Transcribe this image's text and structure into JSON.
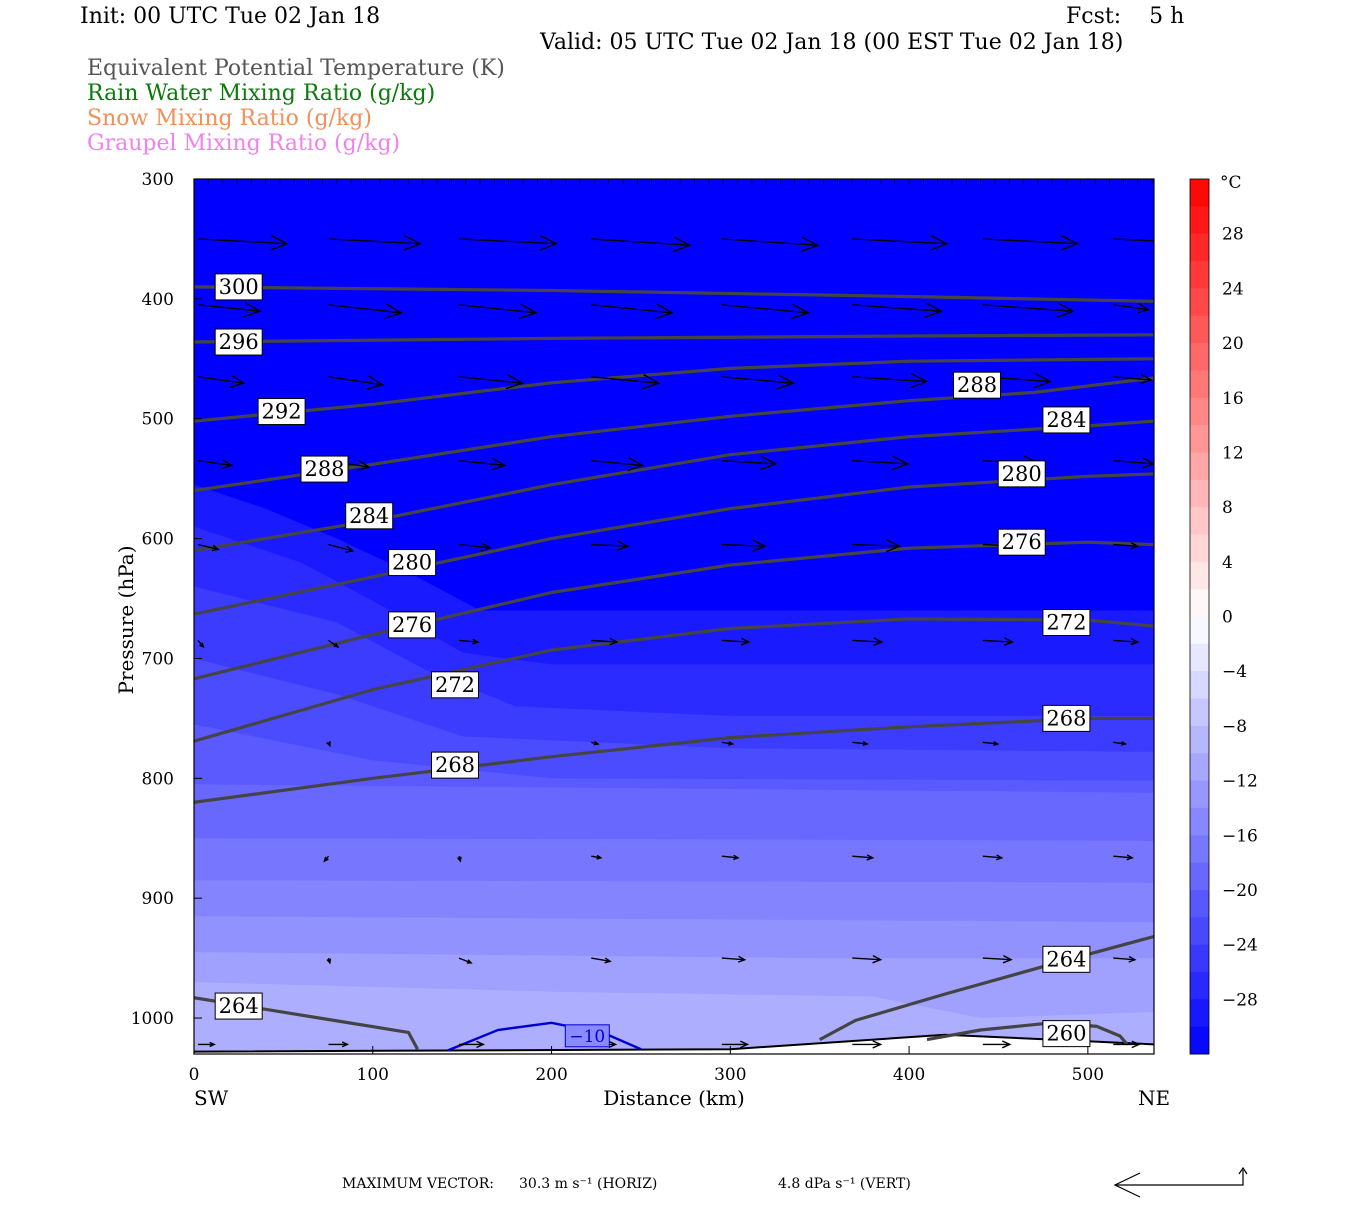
{
  "header": {
    "init": "Init: 00 UTC Tue 02 Jan 18",
    "fcst": "Fcst:    5 h",
    "valid": "Valid: 05 UTC Tue 02 Jan 18 (00 EST Tue 02 Jan 18)",
    "legend": [
      {
        "text": "Equivalent Potential Temperature (K)",
        "color": "#555555"
      },
      {
        "text": "Rain Water Mixing Ratio (g/kg)",
        "color": "#0a7a0a"
      },
      {
        "text": "Snow Mixing Ratio (g/kg)",
        "color": "#f0905a"
      },
      {
        "text": "Graupel Mixing Ratio (g/kg)",
        "color": "#ee82ee"
      }
    ]
  },
  "footer": {
    "max_vector_label": "MAXIMUM VECTOR:",
    "horiz": "30.3 m s⁻¹ (HORIZ)",
    "vert": "4.8 dPa s⁻¹ (VERT)"
  },
  "chart_data": {
    "type": "contour",
    "xlabel": "Distance (km)",
    "ylabel": "Pressure (hPa)",
    "x_ticks": [
      0,
      100,
      200,
      300,
      400,
      500
    ],
    "xlim": [
      0,
      537
    ],
    "y_ticks": [
      300,
      400,
      500,
      600,
      700,
      800,
      900,
      1000
    ],
    "ylim": [
      300,
      1030
    ],
    "x_end_labels": {
      "left": "SW",
      "right": "NE"
    },
    "colorbar": {
      "unit": "°C",
      "tick_labels": [
        "28",
        "24",
        "20",
        "16",
        "12",
        "8",
        "4",
        "0",
        "−4",
        "−8",
        "−12",
        "−16",
        "−20",
        "−24",
        "−28"
      ],
      "tick_values": [
        28,
        24,
        20,
        16,
        12,
        8,
        4,
        0,
        -4,
        -8,
        -12,
        -16,
        -20,
        -24,
        -28
      ],
      "range": [
        -32,
        32
      ],
      "step": 2
    },
    "theta_e_contours": [
      {
        "label": "300",
        "points": [
          [
            0,
            390
          ],
          [
            200,
            393
          ],
          [
            400,
            398
          ],
          [
            537,
            402
          ]
        ],
        "labels": [
          [
            25,
            390
          ]
        ]
      },
      {
        "label": "296",
        "points": [
          [
            0,
            436
          ],
          [
            200,
            433
          ],
          [
            400,
            431
          ],
          [
            537,
            430
          ]
        ],
        "labels": [
          [
            25,
            436
          ]
        ]
      },
      {
        "label": "292",
        "points": [
          [
            0,
            502
          ],
          [
            100,
            488
          ],
          [
            200,
            470
          ],
          [
            300,
            458
          ],
          [
            400,
            452
          ],
          [
            537,
            450
          ]
        ],
        "labels": [
          [
            49,
            494
          ]
        ]
      },
      {
        "label": "288",
        "points": [
          [
            0,
            560
          ],
          [
            100,
            538
          ],
          [
            200,
            515
          ],
          [
            300,
            498
          ],
          [
            400,
            485
          ],
          [
            470,
            478
          ],
          [
            537,
            466
          ]
        ],
        "labels": [
          [
            73,
            542
          ],
          [
            438,
            472
          ]
        ]
      },
      {
        "label": "284",
        "points": [
          [
            0,
            610
          ],
          [
            100,
            585
          ],
          [
            200,
            555
          ],
          [
            300,
            530
          ],
          [
            400,
            515
          ],
          [
            500,
            506
          ],
          [
            537,
            502
          ]
        ],
        "labels": [
          [
            98,
            581
          ],
          [
            488,
            501
          ]
        ]
      },
      {
        "label": "280",
        "points": [
          [
            0,
            663
          ],
          [
            100,
            632
          ],
          [
            200,
            600
          ],
          [
            300,
            575
          ],
          [
            400,
            557
          ],
          [
            500,
            548
          ],
          [
            537,
            546
          ]
        ],
        "labels": [
          [
            122,
            620
          ],
          [
            463,
            546
          ]
        ]
      },
      {
        "label": "276",
        "points": [
          [
            0,
            717
          ],
          [
            100,
            680
          ],
          [
            200,
            645
          ],
          [
            300,
            622
          ],
          [
            400,
            608
          ],
          [
            500,
            603
          ],
          [
            537,
            605
          ]
        ],
        "labels": [
          [
            122,
            672
          ],
          [
            463,
            603
          ]
        ]
      },
      {
        "label": "272",
        "points": [
          [
            0,
            769
          ],
          [
            100,
            726
          ],
          [
            200,
            693
          ],
          [
            300,
            675
          ],
          [
            400,
            667
          ],
          [
            500,
            668
          ],
          [
            537,
            673
          ]
        ],
        "labels": [
          [
            146,
            722
          ],
          [
            488,
            670
          ]
        ]
      },
      {
        "label": "268",
        "points": [
          [
            0,
            820
          ],
          [
            100,
            800
          ],
          [
            200,
            782
          ],
          [
            300,
            766
          ],
          [
            400,
            757
          ],
          [
            500,
            750
          ],
          [
            537,
            750
          ]
        ],
        "labels": [
          [
            146,
            789
          ],
          [
            488,
            750
          ]
        ]
      },
      {
        "label": "264",
        "points": [
          [
            0,
            983
          ],
          [
            70,
            1000
          ],
          [
            120,
            1012
          ],
          [
            125,
            1026
          ]
        ],
        "labels": [
          [
            25,
            990
          ]
        ]
      },
      {
        "label": "264",
        "points": [
          [
            350,
            1018
          ],
          [
            370,
            1002
          ],
          [
            420,
            980
          ],
          [
            480,
            955
          ],
          [
            537,
            932
          ]
        ],
        "labels": [
          [
            488,
            951
          ]
        ]
      },
      {
        "label": "260",
        "points": [
          [
            410,
            1018
          ],
          [
            440,
            1010
          ],
          [
            480,
            1004
          ],
          [
            505,
            1007
          ],
          [
            518,
            1015
          ],
          [
            522,
            1022
          ]
        ],
        "labels": [
          [
            488,
            1013
          ]
        ]
      }
    ],
    "temperature_contour": {
      "label": "−10",
      "points": [
        [
          142,
          1027
        ],
        [
          170,
          1010
        ],
        [
          200,
          1004
        ],
        [
          230,
          1013
        ],
        [
          250,
          1026
        ]
      ],
      "labels": [
        [
          220,
          1014
        ]
      ]
    },
    "wind_vectors": [
      {
        "p": 355,
        "x": [
          0,
          73,
          146,
          220,
          293,
          366,
          439,
          512
        ],
        "u": [
          66,
          68,
          72,
          73,
          71,
          70,
          70,
          72
        ],
        "v": [
          -3,
          -3,
          -3,
          -4,
          -4,
          -3,
          -3,
          -3
        ]
      },
      {
        "p": 410,
        "x": [
          0,
          73,
          146,
          220,
          293,
          366,
          439,
          512
        ],
        "u": [
          46,
          54,
          57,
          60,
          64,
          66,
          67,
          26
        ],
        "v": [
          -4,
          -5,
          -5,
          -5,
          -5,
          -4,
          -4,
          -3
        ]
      },
      {
        "p": 470,
        "x": [
          0,
          73,
          146,
          220,
          293,
          366,
          439,
          512
        ],
        "u": [
          34,
          40,
          47,
          50,
          53,
          55,
          50,
          28
        ],
        "v": [
          -4,
          -5,
          -4,
          -4,
          -4,
          -3,
          -3,
          -2
        ]
      },
      {
        "p": 540,
        "x": [
          0,
          73,
          146,
          220,
          293,
          366,
          439,
          512
        ],
        "u": [
          25,
          30,
          34,
          38,
          40,
          41,
          42,
          30
        ],
        "v": [
          -3,
          -4,
          -3,
          -3,
          -2,
          -2,
          -2,
          -2
        ]
      },
      {
        "p": 610,
        "x": [
          0,
          73,
          146,
          220,
          293,
          366,
          439,
          512
        ],
        "u": [
          15,
          18,
          23,
          27,
          32,
          35,
          32,
          18
        ],
        "v": [
          -3,
          -4,
          -2,
          -1,
          -1,
          -1,
          -1,
          -1
        ]
      },
      {
        "p": 690,
        "x": [
          0,
          73,
          146,
          220,
          293,
          366,
          439,
          512
        ],
        "u": [
          4,
          7,
          14,
          19,
          20,
          22,
          22,
          18
        ],
        "v": [
          -4,
          -4,
          -1,
          -1,
          -1,
          -1,
          -1,
          -1
        ]
      },
      {
        "p": 775,
        "x": [
          73,
          220,
          293,
          366,
          439,
          512
        ],
        "u": [
          1,
          5,
          8,
          11,
          11,
          9
        ],
        "v": [
          -2,
          -1,
          -1,
          -1,
          -1,
          -1
        ]
      },
      {
        "p": 870,
        "x": [
          73,
          146,
          220,
          293,
          366,
          439,
          512
        ],
        "u": [
          -3,
          1,
          7,
          12,
          15,
          14,
          14
        ],
        "v": [
          -3,
          -3,
          -1,
          -1,
          -1,
          -1,
          -1
        ]
      },
      {
        "p": 955,
        "x": [
          73,
          146,
          220,
          293,
          366,
          439,
          512
        ],
        "u": [
          1,
          9,
          14,
          17,
          21,
          21,
          16
        ],
        "v": [
          -3,
          -3,
          -2,
          -1,
          -1,
          -1,
          -1
        ]
      },
      {
        "p": 1027,
        "x": [
          0,
          73,
          146,
          220,
          293,
          366,
          439,
          512
        ],
        "u": [
          12,
          14,
          18,
          18,
          19,
          21,
          20,
          19
        ],
        "v": [
          0,
          0,
          0,
          0,
          0,
          0,
          0,
          0
        ]
      }
    ]
  }
}
